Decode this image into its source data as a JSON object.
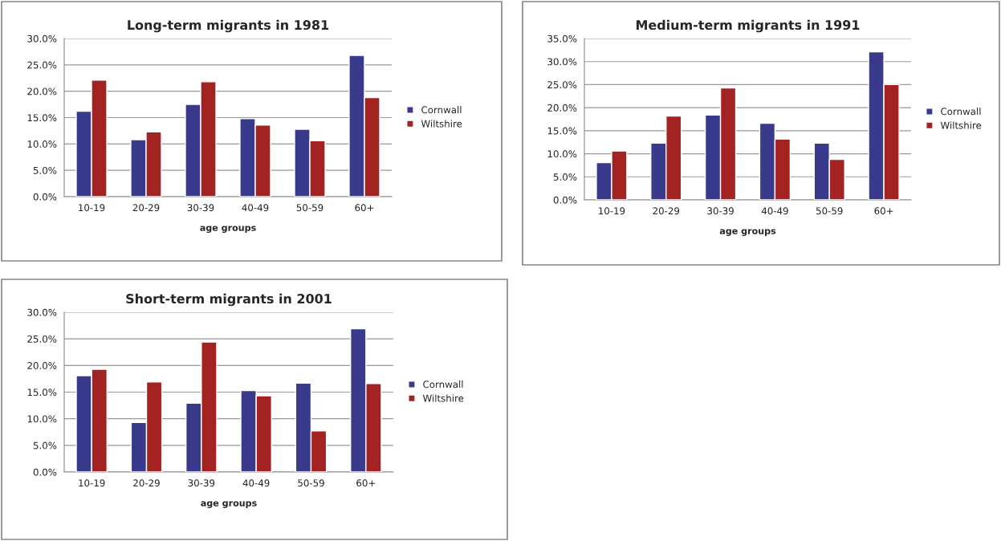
{
  "chart_data": [
    {
      "type": "bar",
      "title": "Long-term migrants in 1981",
      "xlabel": "age groups",
      "categories": [
        "10-19",
        "20-29",
        "30-39",
        "40-49",
        "50-59",
        "60+"
      ],
      "series": [
        {
          "name": "Cornwall",
          "color": "#3a3a8c",
          "values": [
            16.2,
            10.8,
            17.5,
            14.8,
            12.8,
            26.8
          ]
        },
        {
          "name": "Wiltshire",
          "color": "#a32222",
          "values": [
            22.1,
            12.3,
            21.8,
            13.6,
            10.6,
            18.8
          ]
        }
      ],
      "ylim": [
        0,
        30
      ],
      "yticks": [
        {
          "value": 0,
          "label": "0.0%"
        },
        {
          "value": 5,
          "label": "5.0%"
        },
        {
          "value": 10,
          "label": "10.0%"
        },
        {
          "value": 15,
          "label": "15.0%"
        },
        {
          "value": 20,
          "label": "20.0%"
        },
        {
          "value": 25,
          "label": "25.0%"
        },
        {
          "value": 30,
          "label": "30.0%"
        }
      ],
      "grid": "y",
      "legend": "right"
    },
    {
      "type": "bar",
      "title": "Medium-term migrants in 1991",
      "xlabel": "age groups",
      "categories": [
        "10-19",
        "20-29",
        "30-39",
        "40-49",
        "50-59",
        "60+"
      ],
      "series": [
        {
          "name": "Cornwall",
          "color": "#3a3a8c",
          "values": [
            8.1,
            12.3,
            18.4,
            16.6,
            12.3,
            32.1
          ]
        },
        {
          "name": "Wiltshire",
          "color": "#a32222",
          "values": [
            10.6,
            18.2,
            24.3,
            13.2,
            8.8,
            25.0
          ]
        }
      ],
      "ylim": [
        0,
        35
      ],
      "yticks": [
        {
          "value": 0,
          "label": "0.0%"
        },
        {
          "value": 5,
          "label": "5.0%"
        },
        {
          "value": 10,
          "label": "10.0%"
        },
        {
          "value": 15,
          "label": "15.0%"
        },
        {
          "value": 20,
          "label": "20.0%"
        },
        {
          "value": 25,
          "label": "25.0%"
        },
        {
          "value": 30,
          "label": "30.0%"
        },
        {
          "value": 35,
          "label": "35.0%"
        }
      ],
      "grid": "y",
      "legend": "right"
    },
    {
      "type": "bar",
      "title": "Short-term migrants in 2001",
      "xlabel": "age groups",
      "categories": [
        "10-19",
        "20-29",
        "30-39",
        "40-49",
        "50-59",
        "60+"
      ],
      "series": [
        {
          "name": "Cornwall",
          "color": "#3a3a8c",
          "values": [
            18.1,
            9.3,
            12.9,
            15.3,
            16.7,
            26.9
          ]
        },
        {
          "name": "Wiltshire",
          "color": "#a32222",
          "values": [
            19.3,
            16.9,
            24.4,
            14.3,
            7.7,
            16.6
          ]
        }
      ],
      "ylim": [
        0,
        30
      ],
      "yticks": [
        {
          "value": 0,
          "label": "0.0%"
        },
        {
          "value": 5,
          "label": "5.0%"
        },
        {
          "value": 10,
          "label": "10.0%"
        },
        {
          "value": 15,
          "label": "15.0%"
        },
        {
          "value": 20,
          "label": "20.0%"
        },
        {
          "value": 25,
          "label": "25.0%"
        },
        {
          "value": 30,
          "label": "30.0%"
        }
      ],
      "grid": "y",
      "legend": "right"
    }
  ]
}
